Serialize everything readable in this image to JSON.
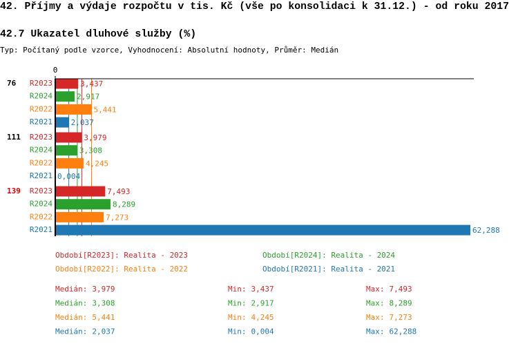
{
  "header": {
    "title": "42. Příjmy a výdaje rozpočtu v tis. Kč (vše po konsolidaci k 31.12.) - od roku 2017",
    "subtitle": "42.7 Ukazatel dluhové služby (%)",
    "note": "Typ: Počítaný podle vzorce, Vyhodnocení: Absolutní hodnoty, Průměr: Medián"
  },
  "chart_data": {
    "type": "bar",
    "orientation": "horizontal",
    "groups": [
      "76",
      "111",
      "139"
    ],
    "group_label_colors": [
      "#000000",
      "#000000",
      "#dd0000"
    ],
    "xlim": [
      0,
      62.8
    ],
    "xticks": [
      0
    ],
    "stats_labels": [
      "Medián:",
      "Min:",
      "Max:"
    ],
    "series": [
      {
        "name": "R2023",
        "legend_label": "Období[R2023]: Realita - 2023",
        "color": "#d62728",
        "values": [
          3.437,
          3.979,
          7.493
        ],
        "value_labels": [
          "3,437",
          "3,979",
          "7,493"
        ],
        "stats": [
          {
            "value": 3.979,
            "label": "3,979"
          },
          {
            "value": 3.437,
            "label": "3,437"
          },
          {
            "value": 7.493,
            "label": "7,493"
          }
        ]
      },
      {
        "name": "R2024",
        "legend_label": "Období[R2024]: Realita - 2024",
        "color": "#2ca02c",
        "values": [
          2.917,
          3.308,
          8.289
        ],
        "value_labels": [
          "2,917",
          "3,308",
          "8,289"
        ],
        "stats": [
          {
            "value": 3.308,
            "label": "3,308"
          },
          {
            "value": 2.917,
            "label": "2,917"
          },
          {
            "value": 8.289,
            "label": "8,289"
          }
        ]
      },
      {
        "name": "R2022",
        "legend_label": "Období[R2022]: Realita - 2022",
        "color": "#ff7f0e",
        "values": [
          5.441,
          4.245,
          7.273
        ],
        "value_labels": [
          "5,441",
          "4,245",
          "7,273"
        ],
        "stats": [
          {
            "value": 5.441,
            "label": "5,441"
          },
          {
            "value": 4.245,
            "label": "4,245"
          },
          {
            "value": 7.273,
            "label": "7,273"
          }
        ]
      },
      {
        "name": "R2021",
        "legend_label": "Období[R2021]: Realita - 2021",
        "color": "#1f77b4",
        "values": [
          2.037,
          0.004,
          62.288
        ],
        "value_labels": [
          "2,037",
          "0,004",
          "62,288"
        ],
        "stats": [
          {
            "value": 2.037,
            "label": "2,037"
          },
          {
            "value": 0.004,
            "label": "0,004"
          },
          {
            "value": 62.288,
            "label": "62,288"
          }
        ]
      }
    ]
  }
}
